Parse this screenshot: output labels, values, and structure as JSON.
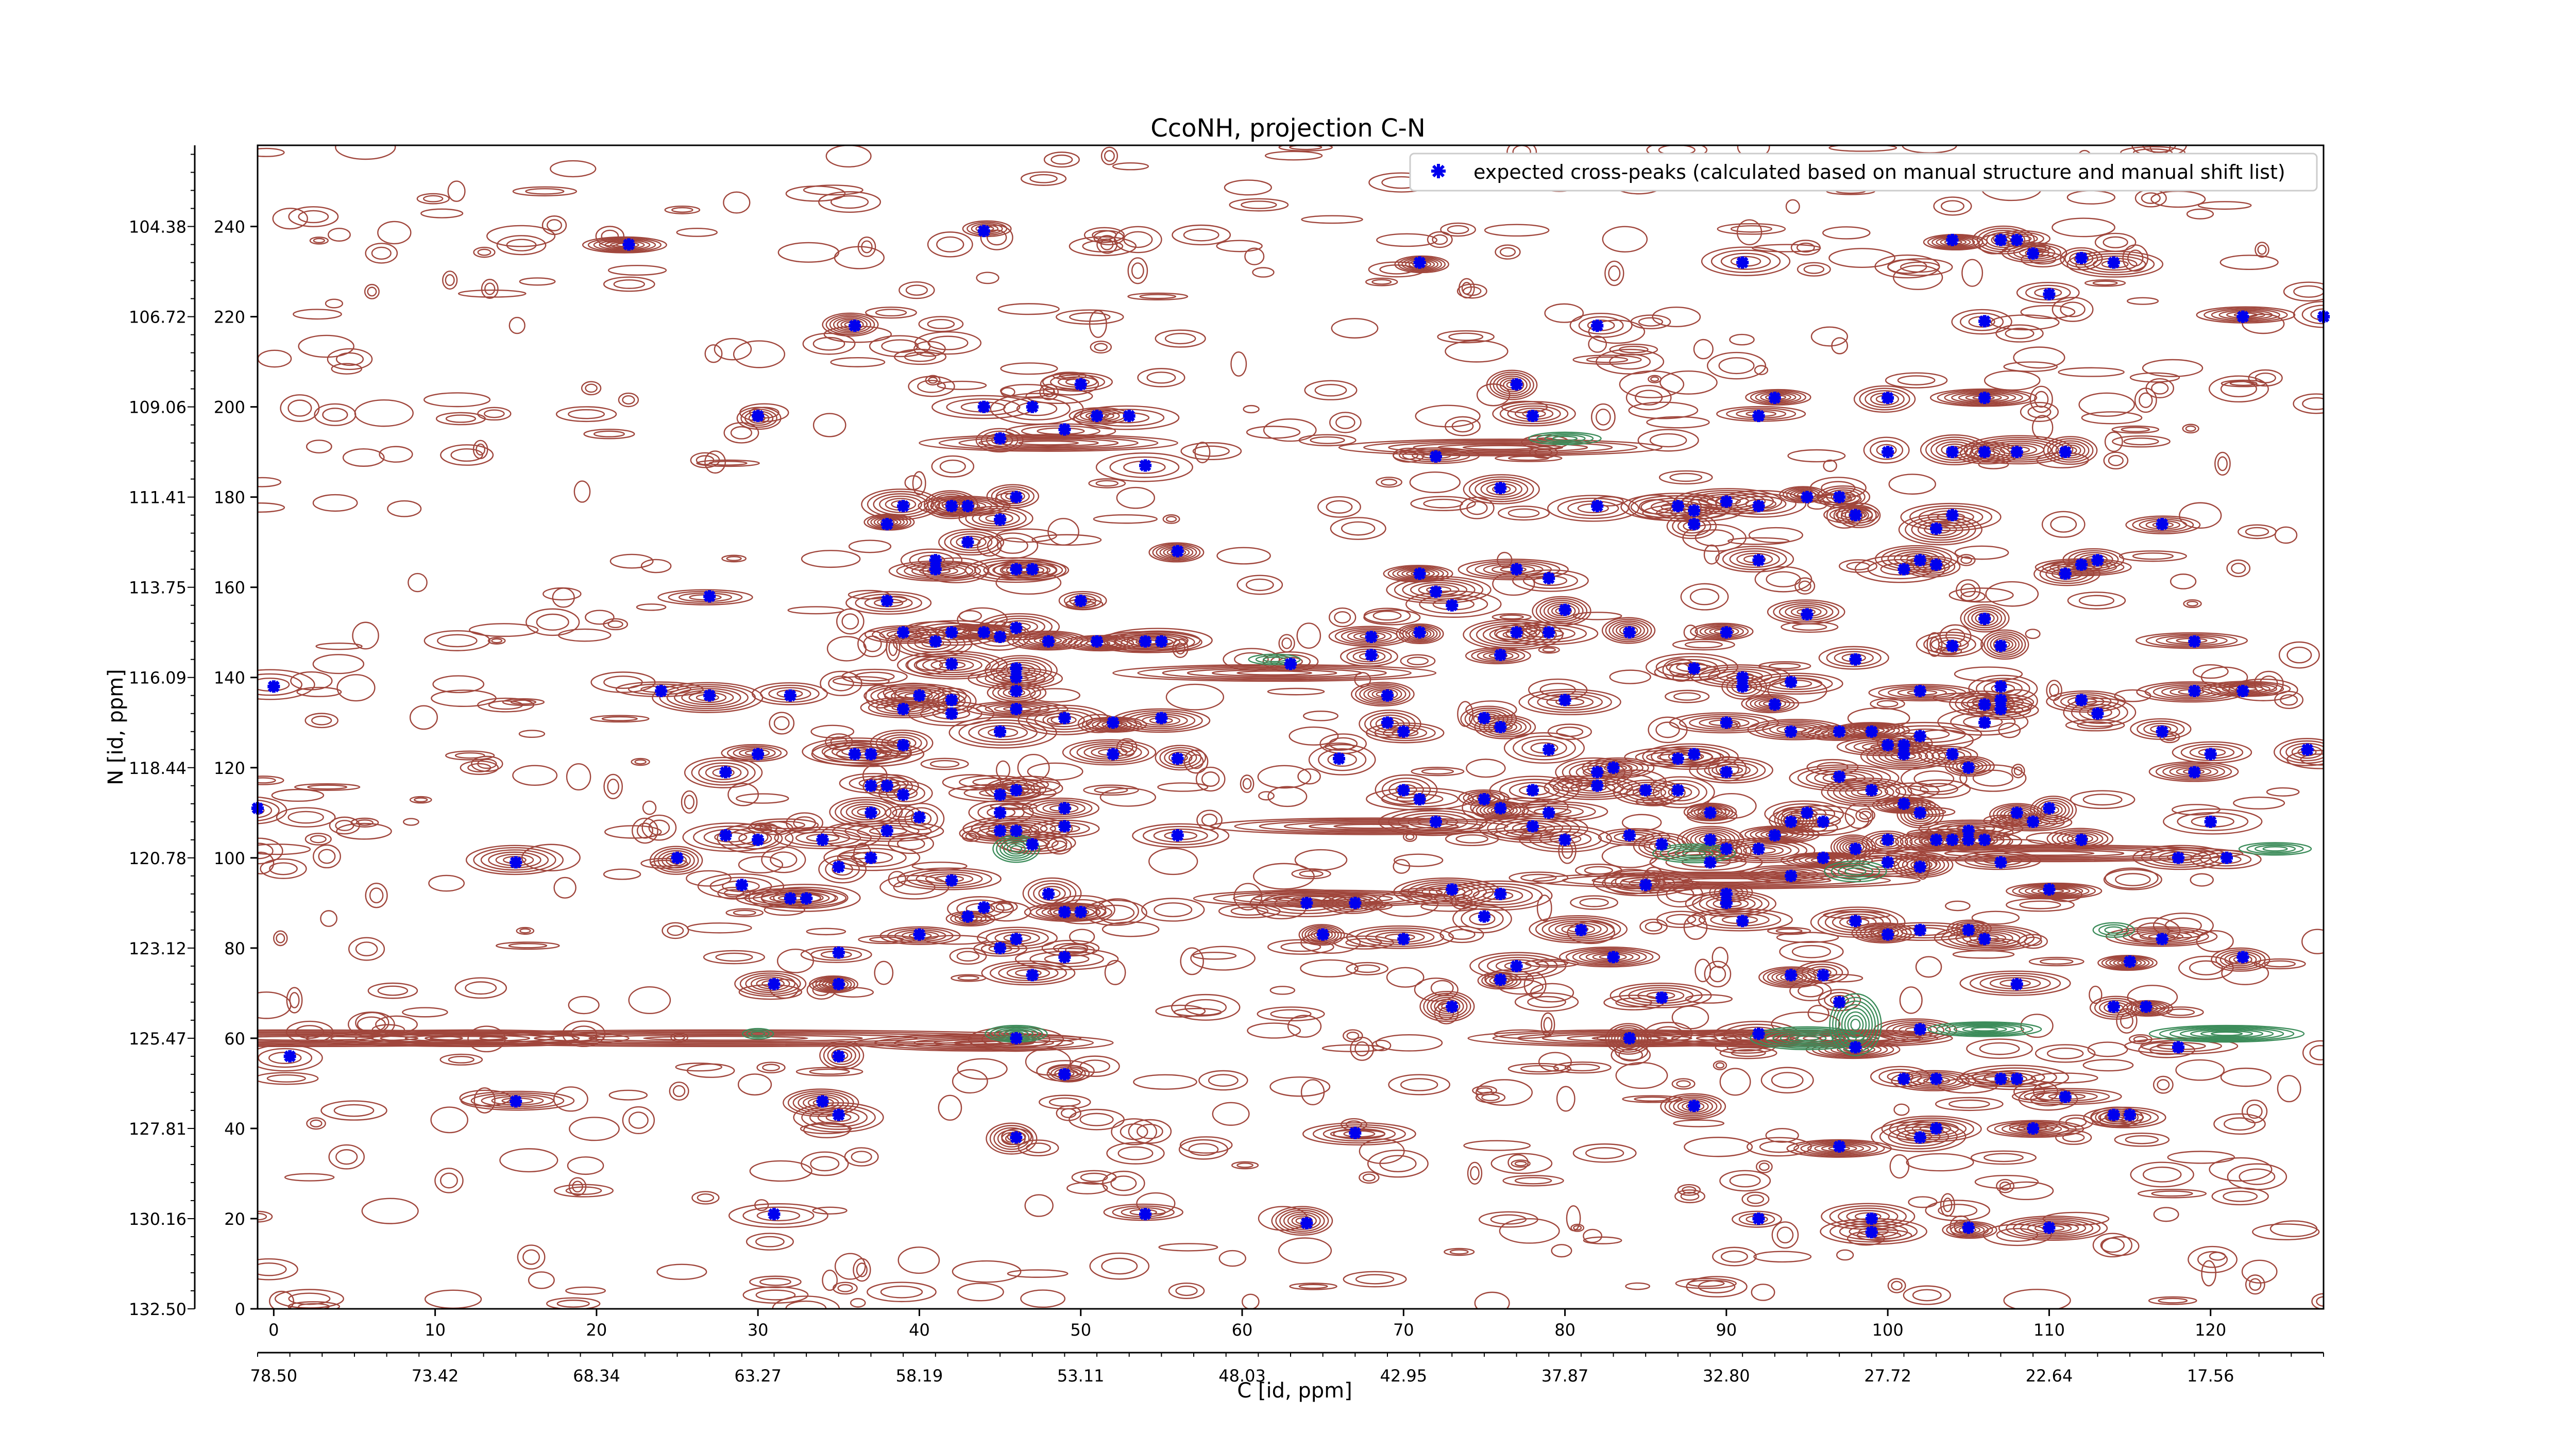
{
  "chart_data": {
    "type": "contour",
    "title": "CcoNH, projection C-N",
    "xlabel": "C [id, ppm]",
    "ylabel": "N [id, ppm]",
    "xlim": [
      -1,
      127
    ],
    "ylim": [
      0,
      258
    ],
    "x_ticks": [
      "0",
      "10",
      "20",
      "30",
      "40",
      "50",
      "60",
      "70",
      "80",
      "90",
      "100",
      "110",
      "120"
    ],
    "x_secondary_ticks": [
      "78.50",
      "73.42",
      "68.34",
      "63.27",
      "58.19",
      "53.11",
      "48.03",
      "42.95",
      "37.87",
      "32.80",
      "27.72",
      "22.64",
      "17.56"
    ],
    "y_ticks": [
      "0",
      "20",
      "40",
      "60",
      "80",
      "100",
      "120",
      "140",
      "160",
      "180",
      "200",
      "220",
      "240"
    ],
    "y_secondary_ticks": [
      "132.50",
      "130.16",
      "127.81",
      "125.47",
      "123.12",
      "120.78",
      "118.44",
      "116.09",
      "113.75",
      "111.41",
      "109.06",
      "106.72",
      "104.38"
    ],
    "legend": {
      "label": "expected cross-peaks (calculated based on manual structure and manual shift list)",
      "placement": "top-right"
    },
    "grid": false,
    "colors": {
      "positive_contour": "#a0463c",
      "negative_contour": "#3c8c5a",
      "marker": "#0000ee"
    },
    "series": [
      {
        "name": "expected cross-peaks (calculated based on manual structure and manual shift list)",
        "points": [
          [
            -1,
            111
          ],
          [
            0,
            138
          ],
          [
            1,
            56
          ],
          [
            15,
            99
          ],
          [
            15,
            46
          ],
          [
            22,
            236
          ],
          [
            24,
            137
          ],
          [
            25,
            100
          ],
          [
            27,
            136
          ],
          [
            27,
            158
          ],
          [
            28,
            105
          ],
          [
            28,
            119
          ],
          [
            29,
            94
          ],
          [
            30,
            123
          ],
          [
            30,
            198
          ],
          [
            30,
            104
          ],
          [
            31,
            72
          ],
          [
            31,
            21
          ],
          [
            32,
            136
          ],
          [
            32,
            91
          ],
          [
            33,
            91
          ],
          [
            34,
            104
          ],
          [
            34,
            46
          ],
          [
            35,
            79
          ],
          [
            35,
            43
          ],
          [
            35,
            56
          ],
          [
            35,
            72
          ],
          [
            35,
            98
          ],
          [
            36,
            123
          ],
          [
            36,
            218
          ],
          [
            37,
            100
          ],
          [
            37,
            110
          ],
          [
            37,
            116
          ],
          [
            37,
            123
          ],
          [
            38,
            116
          ],
          [
            38,
            174
          ],
          [
            38,
            106
          ],
          [
            38,
            157
          ],
          [
            39,
            133
          ],
          [
            39,
            114
          ],
          [
            39,
            125
          ],
          [
            39,
            150
          ],
          [
            39,
            178
          ],
          [
            40,
            83
          ],
          [
            40,
            109
          ],
          [
            40,
            136
          ],
          [
            41,
            164
          ],
          [
            41,
            166
          ],
          [
            41,
            148
          ],
          [
            42,
            132
          ],
          [
            42,
            143
          ],
          [
            42,
            150
          ],
          [
            42,
            135
          ],
          [
            42,
            178
          ],
          [
            42,
            95
          ],
          [
            43,
            87
          ],
          [
            43,
            170
          ],
          [
            43,
            178
          ],
          [
            44,
            239
          ],
          [
            44,
            89
          ],
          [
            44,
            150
          ],
          [
            44,
            200
          ],
          [
            45,
            175
          ],
          [
            45,
            114
          ],
          [
            45,
            193
          ],
          [
            45,
            110
          ],
          [
            45,
            128
          ],
          [
            45,
            106
          ],
          [
            45,
            149
          ],
          [
            45,
            80
          ],
          [
            46,
            82
          ],
          [
            46,
            151
          ],
          [
            46,
            133
          ],
          [
            46,
            115
          ],
          [
            46,
            137
          ],
          [
            46,
            164
          ],
          [
            46,
            180
          ],
          [
            46,
            142
          ],
          [
            46,
            140
          ],
          [
            46,
            106
          ],
          [
            46,
            60
          ],
          [
            46,
            38
          ],
          [
            47,
            103
          ],
          [
            47,
            74
          ],
          [
            47,
            200
          ],
          [
            47,
            164
          ],
          [
            48,
            92
          ],
          [
            48,
            148
          ],
          [
            49,
            88
          ],
          [
            49,
            131
          ],
          [
            49,
            195
          ],
          [
            49,
            111
          ],
          [
            49,
            52
          ],
          [
            49,
            78
          ],
          [
            49,
            107
          ],
          [
            50,
            205
          ],
          [
            50,
            157
          ],
          [
            50,
            88
          ],
          [
            51,
            148
          ],
          [
            51,
            198
          ],
          [
            52,
            123
          ],
          [
            52,
            130
          ],
          [
            53,
            198
          ],
          [
            54,
            148
          ],
          [
            54,
            21
          ],
          [
            54,
            187
          ],
          [
            55,
            148
          ],
          [
            55,
            131
          ],
          [
            56,
            105
          ],
          [
            56,
            168
          ],
          [
            56,
            122
          ],
          [
            63,
            143
          ],
          [
            64,
            90
          ],
          [
            64,
            19
          ],
          [
            65,
            83
          ],
          [
            66,
            122
          ],
          [
            67,
            39
          ],
          [
            67,
            90
          ],
          [
            68,
            149
          ],
          [
            68,
            145
          ],
          [
            69,
            130
          ],
          [
            69,
            136
          ],
          [
            70,
            115
          ],
          [
            70,
            82
          ],
          [
            70,
            128
          ],
          [
            71,
            232
          ],
          [
            71,
            113
          ],
          [
            71,
            150
          ],
          [
            71,
            163
          ],
          [
            72,
            189
          ],
          [
            72,
            159
          ],
          [
            72,
            108
          ],
          [
            73,
            93
          ],
          [
            73,
            67
          ],
          [
            73,
            156
          ],
          [
            75,
            113
          ],
          [
            75,
            87
          ],
          [
            75,
            131
          ],
          [
            76,
            111
          ],
          [
            76,
            92
          ],
          [
            76,
            182
          ],
          [
            76,
            145
          ],
          [
            76,
            129
          ],
          [
            76,
            73
          ],
          [
            77,
            205
          ],
          [
            77,
            76
          ],
          [
            77,
            150
          ],
          [
            77,
            164
          ],
          [
            78,
            198
          ],
          [
            78,
            107
          ],
          [
            78,
            115
          ],
          [
            79,
            150
          ],
          [
            79,
            110
          ],
          [
            79,
            124
          ],
          [
            79,
            162
          ],
          [
            80,
            104
          ],
          [
            80,
            155
          ],
          [
            80,
            135
          ],
          [
            81,
            84
          ],
          [
            82,
            116
          ],
          [
            82,
            178
          ],
          [
            82,
            218
          ],
          [
            82,
            119
          ],
          [
            83,
            78
          ],
          [
            83,
            120
          ],
          [
            84,
            150
          ],
          [
            84,
            60
          ],
          [
            84,
            105
          ],
          [
            85,
            115
          ],
          [
            85,
            94
          ],
          [
            86,
            69
          ],
          [
            86,
            103
          ],
          [
            87,
            178
          ],
          [
            87,
            115
          ],
          [
            87,
            122
          ],
          [
            88,
            142
          ],
          [
            88,
            174
          ],
          [
            88,
            177
          ],
          [
            88,
            123
          ],
          [
            88,
            45
          ],
          [
            89,
            104
          ],
          [
            89,
            110
          ],
          [
            89,
            99
          ],
          [
            90,
            90
          ],
          [
            90,
            119
          ],
          [
            90,
            130
          ],
          [
            90,
            179
          ],
          [
            90,
            102
          ],
          [
            90,
            150
          ],
          [
            90,
            92
          ],
          [
            91,
            86
          ],
          [
            91,
            138
          ],
          [
            91,
            140
          ],
          [
            91,
            232
          ],
          [
            92,
            198
          ],
          [
            92,
            178
          ],
          [
            92,
            166
          ],
          [
            92,
            102
          ],
          [
            92,
            20
          ],
          [
            92,
            61
          ],
          [
            93,
            105
          ],
          [
            93,
            134
          ],
          [
            93,
            202
          ],
          [
            94,
            139
          ],
          [
            94,
            128
          ],
          [
            94,
            108
          ],
          [
            94,
            96
          ],
          [
            94,
            74
          ],
          [
            95,
            154
          ],
          [
            95,
            110
          ],
          [
            95,
            180
          ],
          [
            96,
            108
          ],
          [
            96,
            100
          ],
          [
            96,
            74
          ],
          [
            97,
            180
          ],
          [
            97,
            118
          ],
          [
            97,
            128
          ],
          [
            97,
            36
          ],
          [
            97,
            68
          ],
          [
            98,
            102
          ],
          [
            98,
            144
          ],
          [
            98,
            176
          ],
          [
            98,
            176
          ],
          [
            98,
            86
          ],
          [
            98,
            58
          ],
          [
            99,
            128
          ],
          [
            99,
            115
          ],
          [
            99,
            20
          ],
          [
            99,
            17
          ],
          [
            100,
            104
          ],
          [
            100,
            99
          ],
          [
            100,
            83
          ],
          [
            100,
            125
          ],
          [
            100,
            190
          ],
          [
            100,
            202
          ],
          [
            101,
            112
          ],
          [
            101,
            125
          ],
          [
            101,
            164
          ],
          [
            101,
            123
          ],
          [
            101,
            51
          ],
          [
            102,
            110
          ],
          [
            102,
            127
          ],
          [
            102,
            98
          ],
          [
            102,
            137
          ],
          [
            102,
            84
          ],
          [
            102,
            38
          ],
          [
            102,
            166
          ],
          [
            102,
            62
          ],
          [
            103,
            173
          ],
          [
            103,
            104
          ],
          [
            103,
            165
          ],
          [
            103,
            51
          ],
          [
            103,
            40
          ],
          [
            104,
            104
          ],
          [
            104,
            123
          ],
          [
            104,
            176
          ],
          [
            104,
            237
          ],
          [
            104,
            190
          ],
          [
            104,
            147
          ],
          [
            105,
            104
          ],
          [
            105,
            84
          ],
          [
            105,
            120
          ],
          [
            105,
            106
          ],
          [
            105,
            18
          ],
          [
            106,
            104
          ],
          [
            106,
            130
          ],
          [
            106,
            153
          ],
          [
            106,
            134
          ],
          [
            106,
            82
          ],
          [
            106,
            190
          ],
          [
            106,
            202
          ],
          [
            106,
            219
          ],
          [
            107,
            237
          ],
          [
            107,
            51
          ],
          [
            107,
            138
          ],
          [
            107,
            135
          ],
          [
            107,
            133
          ],
          [
            107,
            147
          ],
          [
            107,
            99
          ],
          [
            108,
            51
          ],
          [
            108,
            72
          ],
          [
            108,
            190
          ],
          [
            108,
            110
          ],
          [
            108,
            237
          ],
          [
            109,
            234
          ],
          [
            109,
            108
          ],
          [
            109,
            40
          ],
          [
            110,
            93
          ],
          [
            110,
            111
          ],
          [
            110,
            18
          ],
          [
            110,
            225
          ],
          [
            111,
            47
          ],
          [
            111,
            163
          ],
          [
            111,
            190
          ],
          [
            112,
            135
          ],
          [
            112,
            104
          ],
          [
            112,
            233
          ],
          [
            112,
            165
          ],
          [
            113,
            166
          ],
          [
            113,
            132
          ],
          [
            114,
            67
          ],
          [
            114,
            232
          ],
          [
            114,
            43
          ],
          [
            115,
            43
          ],
          [
            115,
            77
          ],
          [
            116,
            67
          ],
          [
            117,
            82
          ],
          [
            117,
            174
          ],
          [
            117,
            128
          ],
          [
            118,
            100
          ],
          [
            118,
            58
          ],
          [
            119,
            148
          ],
          [
            119,
            119
          ],
          [
            119,
            137
          ],
          [
            120,
            123
          ],
          [
            120,
            108
          ],
          [
            121,
            100
          ],
          [
            122,
            78
          ],
          [
            122,
            220
          ],
          [
            122,
            137
          ],
          [
            126,
            124
          ],
          [
            127,
            220
          ]
        ]
      }
    ]
  }
}
